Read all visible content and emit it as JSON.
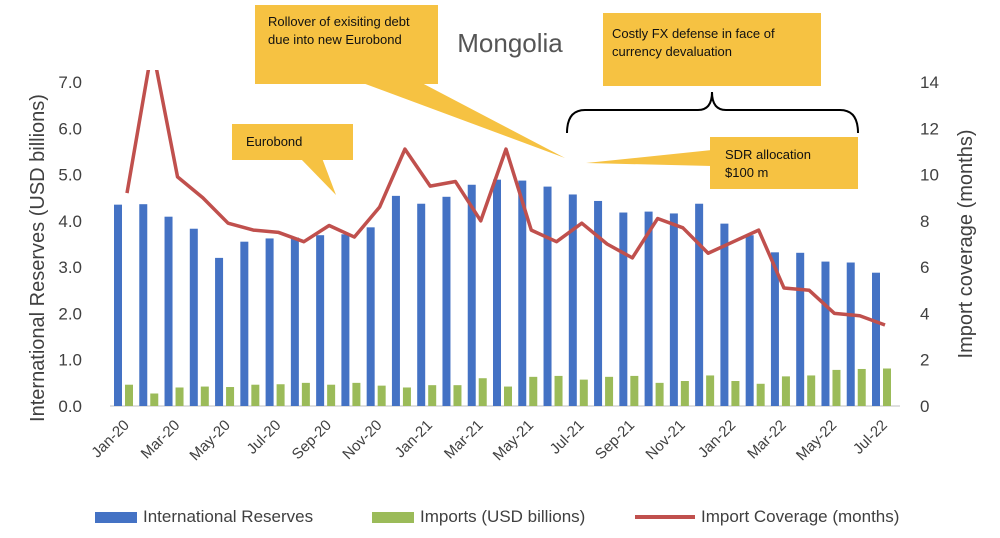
{
  "chart_data": {
    "type": "bar",
    "title": "Mongolia",
    "ylabel": "International Reserves (USD billions)",
    "y2label": "Import coverage (months)",
    "ylim": [
      0,
      7
    ],
    "y2lim": [
      0,
      14
    ],
    "yticks": [
      "0.0",
      "1.0",
      "2.0",
      "3.0",
      "4.0",
      "5.0",
      "6.0",
      "7.0"
    ],
    "y2ticks": [
      "0",
      "2",
      "4",
      "6",
      "8",
      "10",
      "12",
      "14"
    ],
    "categories": [
      "Jan-20",
      "Feb-20",
      "Mar-20",
      "Apr-20",
      "May-20",
      "Jun-20",
      "Jul-20",
      "Aug-20",
      "Sep-20",
      "Oct-20",
      "Nov-20",
      "Dec-20",
      "Jan-21",
      "Feb-21",
      "Mar-21",
      "Apr-21",
      "May-21",
      "Jun-21",
      "Jul-21",
      "Aug-21",
      "Sep-21",
      "Oct-21",
      "Nov-21",
      "Dec-21",
      "Jan-22",
      "Feb-22",
      "Mar-22",
      "Apr-22",
      "May-22",
      "Jun-22",
      "Jul-22"
    ],
    "xtick_labels": [
      "Jan-20",
      "Mar-20",
      "May-20",
      "Jul-20",
      "Sep-20",
      "Nov-20",
      "Jan-21",
      "Mar-21",
      "May-21",
      "Jul-21",
      "Sep-21",
      "Nov-21",
      "Jan-22",
      "Mar-22",
      "May-22",
      "Jul-22"
    ],
    "series": [
      {
        "name": "International Reserves",
        "type": "bar",
        "axis": "left",
        "color": "#4472C4",
        "values": [
          4.35,
          4.36,
          4.09,
          3.83,
          3.2,
          3.55,
          3.62,
          3.64,
          3.69,
          3.71,
          3.86,
          4.54,
          4.37,
          4.52,
          4.78,
          4.89,
          4.87,
          4.74,
          4.57,
          4.43,
          4.18,
          4.2,
          4.16,
          4.37,
          3.94,
          3.69,
          3.32,
          3.31,
          3.12,
          3.1,
          2.88
        ]
      },
      {
        "name": "Imports (USD billions)",
        "type": "bar",
        "axis": "left",
        "color": "#9BBB59",
        "values": [
          0.46,
          0.27,
          0.4,
          0.42,
          0.41,
          0.46,
          0.47,
          0.5,
          0.46,
          0.5,
          0.44,
          0.4,
          0.45,
          0.45,
          0.6,
          0.42,
          0.63,
          0.65,
          0.57,
          0.63,
          0.65,
          0.5,
          0.54,
          0.66,
          0.54,
          0.48,
          0.64,
          0.66,
          0.78,
          0.8,
          0.81
        ]
      },
      {
        "name": "Import Coverage (months)",
        "type": "line",
        "axis": "right",
        "color": "#C0504D",
        "values": [
          9.2,
          15.5,
          9.9,
          9.0,
          7.9,
          7.6,
          7.5,
          7.1,
          7.8,
          7.3,
          8.6,
          11.1,
          9.5,
          9.7,
          8.0,
          11.1,
          7.6,
          7.1,
          7.9,
          7.0,
          6.4,
          8.1,
          7.7,
          6.6,
          7.1,
          7.6,
          5.1,
          5.0,
          4.0,
          3.9,
          3.5
        ]
      }
    ],
    "grid": false,
    "legend": "bottom",
    "annotations": [
      {
        "text": "Rollover of exisiting debt due into new Eurobond"
      },
      {
        "text": "Costly FX defense in face of currency devaluation"
      },
      {
        "text": "Eurobond"
      },
      {
        "text": "SDR allocation $100 m"
      }
    ]
  }
}
